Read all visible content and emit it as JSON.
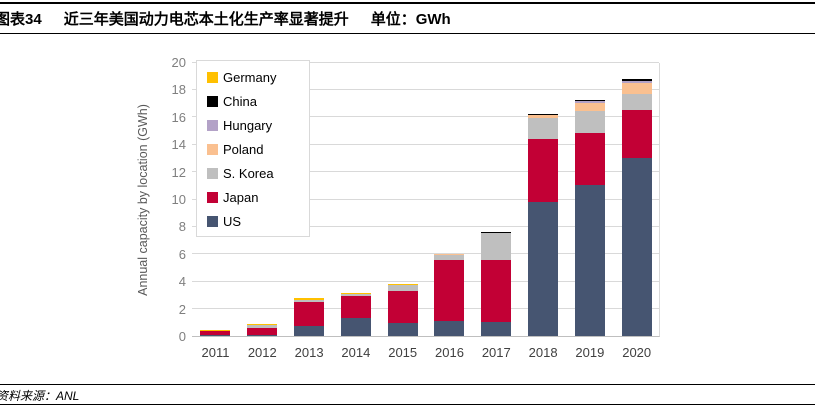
{
  "header": {
    "figure_label": "图表34",
    "title": "近三年美国动力电芯本土化生产率显著提升",
    "unit_label": "单位：GWh"
  },
  "footer": {
    "source_label": "资料来源：ANL"
  },
  "chart_data": {
    "type": "bar",
    "stacked": true,
    "ylabel": "Annual capacity by location (GWh)",
    "xlabel": "",
    "ylim": [
      0,
      20
    ],
    "ytick_step": 2,
    "grid": "horizontal",
    "legend_position": "inside-top-left",
    "categories": [
      "2011",
      "2012",
      "2013",
      "2014",
      "2015",
      "2016",
      "2017",
      "2018",
      "2019",
      "2020"
    ],
    "series": [
      {
        "name": "US",
        "color": "#465571",
        "values": [
          0.05,
          0.05,
          0.7,
          1.3,
          0.95,
          1.1,
          1.05,
          9.75,
          11.0,
          13.0
        ]
      },
      {
        "name": "Japan",
        "color": "#C20035",
        "values": [
          0.3,
          0.5,
          1.75,
          1.6,
          2.35,
          4.45,
          4.5,
          4.65,
          3.8,
          3.5
        ]
      },
      {
        "name": "S. Korea",
        "color": "#BFBFBF",
        "values": [
          0.05,
          0.25,
          0.2,
          0.15,
          0.4,
          0.35,
          1.95,
          1.55,
          1.6,
          1.2
        ]
      },
      {
        "name": "Poland",
        "color": "#FAC090",
        "values": [
          0,
          0,
          0,
          0,
          0,
          0.1,
          0.05,
          0.15,
          0.6,
          0.8
        ]
      },
      {
        "name": "Hungary",
        "color": "#B3A2C7",
        "values": [
          0,
          0,
          0,
          0,
          0,
          0,
          0,
          0,
          0.15,
          0.1
        ]
      },
      {
        "name": "China",
        "color": "#000000",
        "values": [
          0,
          0,
          0,
          0,
          0,
          0,
          0.05,
          0.1,
          0.05,
          0.15
        ]
      },
      {
        "name": "Germany",
        "color": "#FFC000",
        "values": [
          0.05,
          0.1,
          0.15,
          0.05,
          0.1,
          0,
          0,
          0,
          0,
          0
        ]
      }
    ],
    "legend_order": [
      "Germany",
      "China",
      "Hungary",
      "Poland",
      "S. Korea",
      "Japan",
      "US"
    ],
    "yticks": [
      0,
      2,
      4,
      6,
      8,
      10,
      12,
      14,
      16,
      18,
      20
    ]
  },
  "colors": {
    "gridline": "#D9D9D9",
    "axis_line": "#BFBFBF",
    "ytick_label": "#7F7F7F",
    "xtick_label": "#404040",
    "ylabel": "#595959"
  }
}
